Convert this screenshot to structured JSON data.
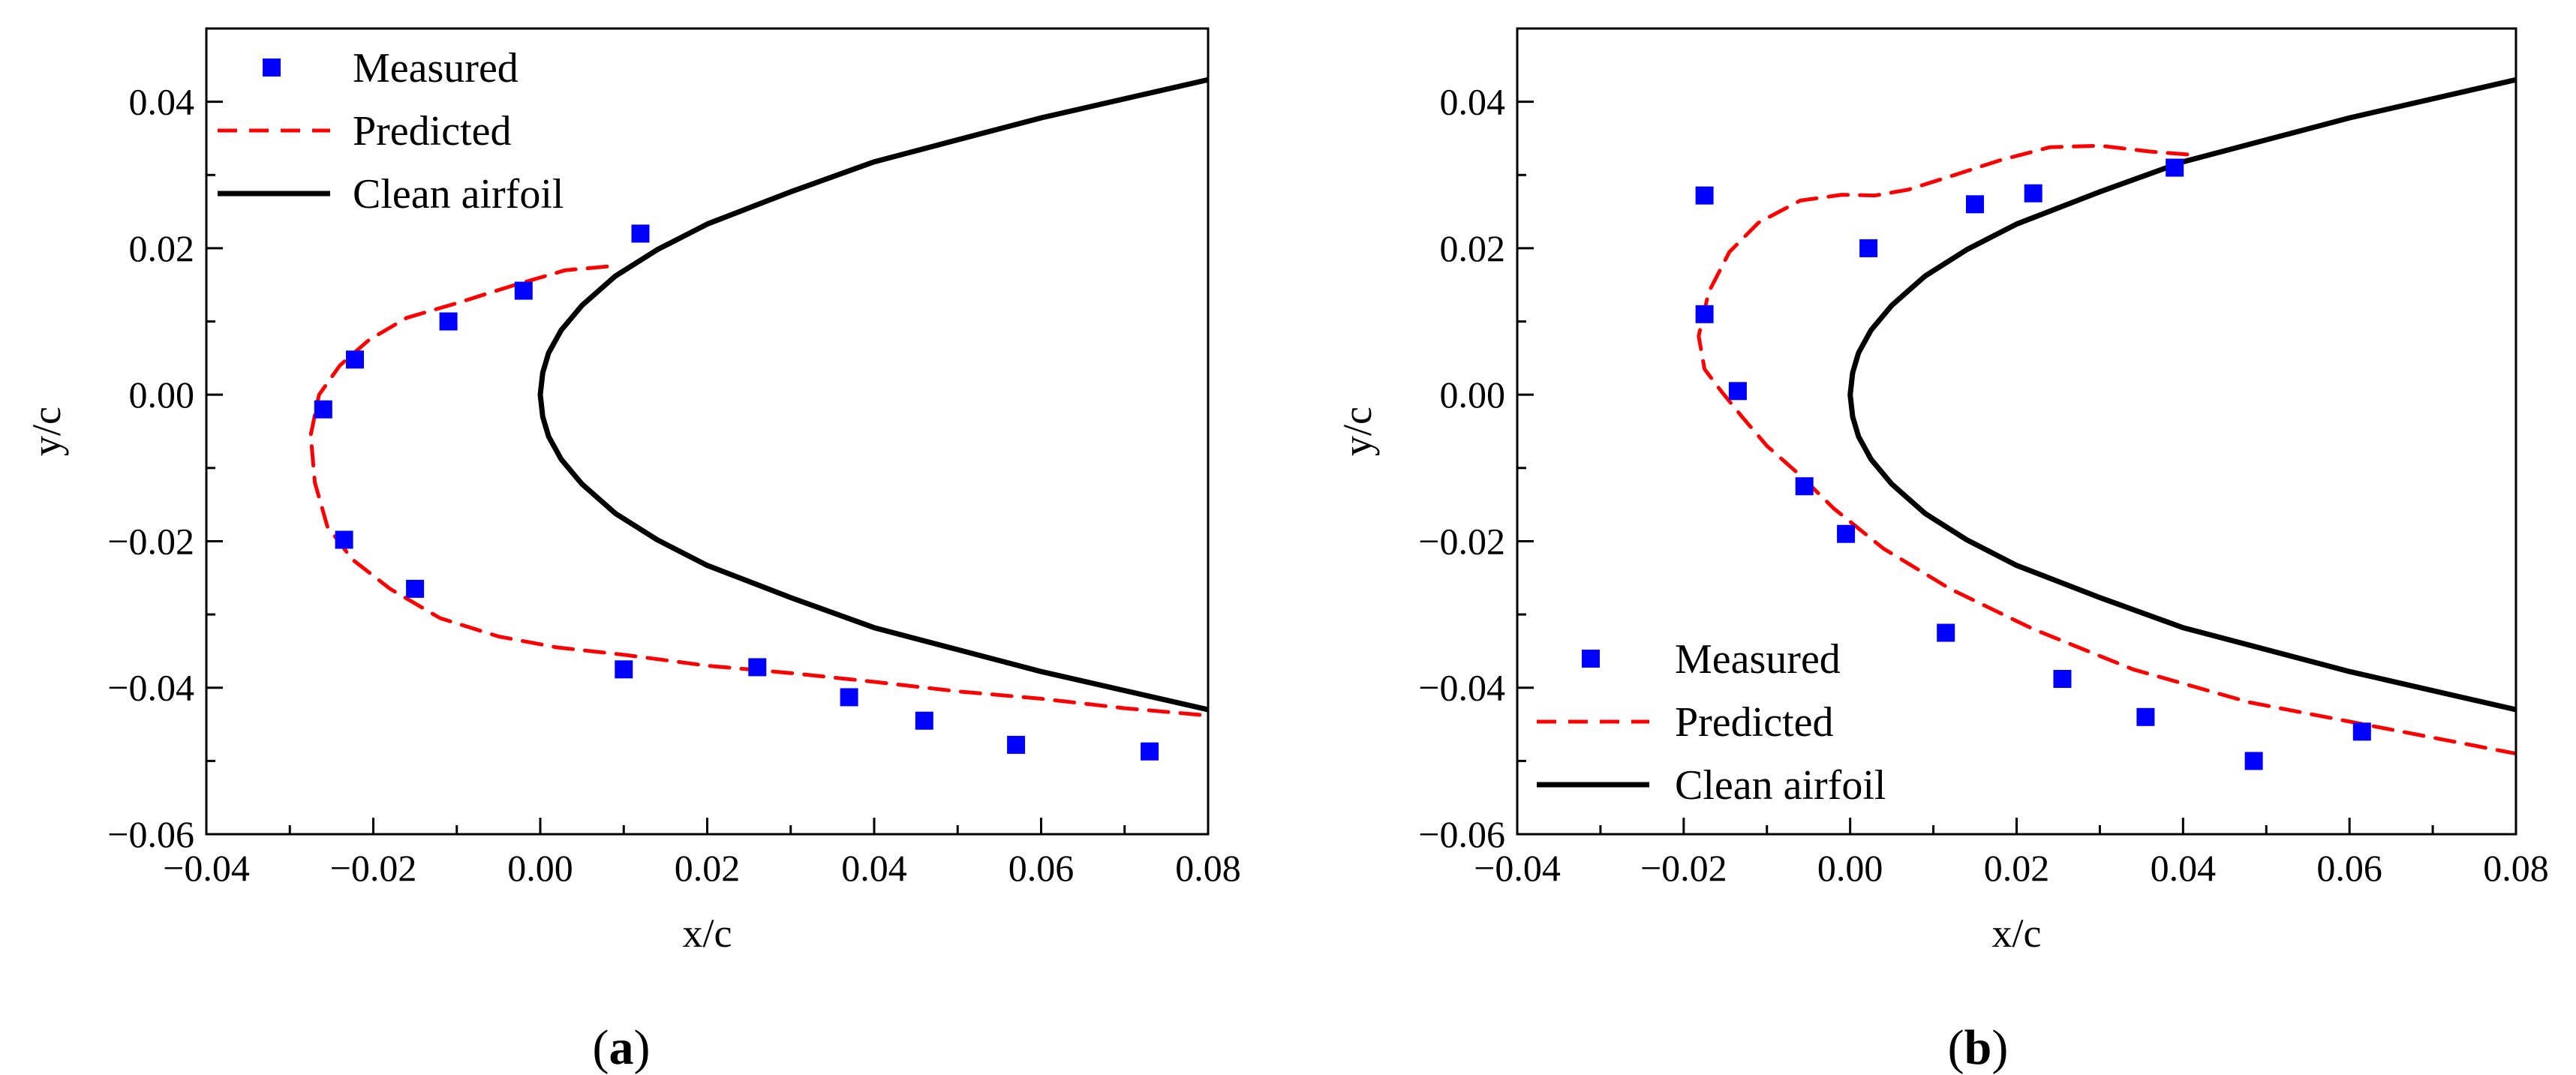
{
  "chart_data": [
    {
      "type": "scatter",
      "panel": "a",
      "xlabel": "x/c",
      "ylabel": "y/c",
      "xlim": [
        -0.04,
        0.08
      ],
      "ylim": [
        -0.06,
        0.05
      ],
      "xticks": [
        -0.04,
        -0.02,
        0.0,
        0.02,
        0.04,
        0.06,
        0.08
      ],
      "yticks": [
        -0.06,
        -0.04,
        -0.02,
        0.0,
        0.02,
        0.04
      ],
      "xtick_labels": [
        "−0.04",
        "−0.02",
        "0.00",
        "0.02",
        "0.04",
        "0.06",
        "0.08"
      ],
      "ytick_labels": [
        "−0.06",
        "−0.04",
        "−0.02",
        "0.00",
        "0.02",
        "0.04"
      ],
      "legend_position": "top-left",
      "legend": [
        "Measured",
        "Predicted",
        "Clean airfoil"
      ],
      "series": [
        {
          "name": "Measured",
          "style": "marker",
          "color": "#0000ff",
          "x": [
            0.012,
            -0.002,
            -0.011,
            -0.0222,
            -0.026,
            -0.0235,
            -0.015,
            0.01,
            0.026,
            0.037,
            0.046,
            0.057,
            0.073
          ],
          "y": [
            0.022,
            0.0142,
            0.01,
            0.0048,
            -0.002,
            -0.0198,
            -0.0265,
            -0.0375,
            -0.0372,
            -0.0413,
            -0.0445,
            -0.0478,
            -0.0487
          ]
        },
        {
          "name": "Predicted",
          "style": "dashed",
          "color": "#ff0000",
          "x": [
            0.008,
            0.003,
            -0.003,
            -0.01,
            -0.016,
            -0.0205,
            -0.024,
            -0.0265,
            -0.0275,
            -0.027,
            -0.0255,
            -0.0225,
            -0.018,
            -0.012,
            -0.005,
            0.002,
            0.01,
            0.02,
            0.03,
            0.04,
            0.05,
            0.06,
            0.07,
            0.08
          ],
          "y": [
            0.0175,
            0.017,
            0.015,
            0.0125,
            0.0105,
            0.0075,
            0.004,
            0.0,
            -0.0055,
            -0.012,
            -0.018,
            -0.0225,
            -0.0265,
            -0.0305,
            -0.033,
            -0.0345,
            -0.0355,
            -0.037,
            -0.038,
            -0.0392,
            -0.0405,
            -0.0415,
            -0.0428,
            -0.0438
          ]
        },
        {
          "name": "Clean airfoil",
          "style": "solid",
          "color": "#000000",
          "x": [
            0.08,
            0.06,
            0.04,
            0.03,
            0.02,
            0.014,
            0.009,
            0.005,
            0.0025,
            0.001,
            0.0003,
            0.0,
            0.0003,
            0.001,
            0.0025,
            0.005,
            0.009,
            0.014,
            0.02,
            0.03,
            0.04,
            0.06,
            0.08
          ],
          "y": [
            0.043,
            0.0378,
            0.0318,
            0.0277,
            0.0233,
            0.0198,
            0.0162,
            0.0122,
            0.0088,
            0.0057,
            0.003,
            0.0,
            -0.003,
            -0.0057,
            -0.0088,
            -0.0122,
            -0.0162,
            -0.0198,
            -0.0233,
            -0.0277,
            -0.0318,
            -0.0378,
            -0.043
          ]
        }
      ]
    },
    {
      "type": "scatter",
      "panel": "b",
      "xlabel": "x/c",
      "ylabel": "y/c",
      "xlim": [
        -0.04,
        0.08
      ],
      "ylim": [
        -0.06,
        0.05
      ],
      "xticks": [
        -0.04,
        -0.02,
        0.0,
        0.02,
        0.04,
        0.06,
        0.08
      ],
      "yticks": [
        -0.06,
        -0.04,
        -0.02,
        0.0,
        0.02,
        0.04
      ],
      "xtick_labels": [
        "−0.04",
        "−0.02",
        "0.00",
        "0.02",
        "0.04",
        "0.06",
        "0.08"
      ],
      "ytick_labels": [
        "−0.06",
        "−0.04",
        "−0.02",
        "0.00",
        "0.02",
        "0.04"
      ],
      "legend_position": "bottom-left",
      "legend": [
        "Measured",
        "Predicted",
        "Clean airfoil"
      ],
      "series": [
        {
          "name": "Measured",
          "style": "marker",
          "color": "#0000ff",
          "x": [
            0.039,
            0.022,
            0.015,
            0.0022,
            -0.0175,
            -0.0175,
            -0.0135,
            -0.0055,
            -0.0005,
            0.0115,
            0.0255,
            0.0355,
            0.0485,
            0.0615
          ],
          "y": [
            0.031,
            0.0275,
            0.026,
            0.02,
            0.0272,
            0.011,
            0.0005,
            -0.0125,
            -0.019,
            -0.0325,
            -0.0388,
            -0.044,
            -0.05,
            -0.046
          ]
        },
        {
          "name": "Predicted",
          "style": "dashed",
          "color": "#ff0000",
          "x": [
            0.0405,
            0.036,
            0.03,
            0.024,
            0.018,
            0.012,
            0.007,
            0.003,
            -0.001,
            -0.006,
            -0.011,
            -0.0145,
            -0.017,
            -0.0182,
            -0.0175,
            -0.0155,
            -0.013,
            -0.01,
            -0.006,
            -0.002,
            0.004,
            0.012,
            0.022,
            0.034,
            0.048,
            0.064,
            0.08
          ],
          "y": [
            0.0328,
            0.0332,
            0.034,
            0.0338,
            0.032,
            0.0298,
            0.028,
            0.0272,
            0.0273,
            0.0265,
            0.0235,
            0.0195,
            0.014,
            0.008,
            0.0035,
            0.0005,
            -0.003,
            -0.007,
            -0.011,
            -0.0155,
            -0.021,
            -0.0265,
            -0.032,
            -0.0375,
            -0.042,
            -0.0455,
            -0.049
          ]
        },
        {
          "name": "Clean airfoil",
          "style": "solid",
          "color": "#000000",
          "x": [
            0.08,
            0.06,
            0.04,
            0.03,
            0.02,
            0.014,
            0.009,
            0.005,
            0.0025,
            0.001,
            0.0003,
            0.0,
            0.0003,
            0.001,
            0.0025,
            0.005,
            0.009,
            0.014,
            0.02,
            0.03,
            0.04,
            0.06,
            0.08
          ],
          "y": [
            0.043,
            0.0378,
            0.0318,
            0.0277,
            0.0233,
            0.0198,
            0.0162,
            0.0122,
            0.0088,
            0.0057,
            0.003,
            0.0,
            -0.003,
            -0.0057,
            -0.0088,
            -0.0122,
            -0.0162,
            -0.0198,
            -0.0233,
            -0.0277,
            -0.0318,
            -0.0378,
            -0.043
          ]
        }
      ]
    }
  ],
  "panel_labels": [
    {
      "open": "(",
      "letter": "a",
      "close": ")"
    },
    {
      "open": "(",
      "letter": "b",
      "close": ")"
    }
  ]
}
